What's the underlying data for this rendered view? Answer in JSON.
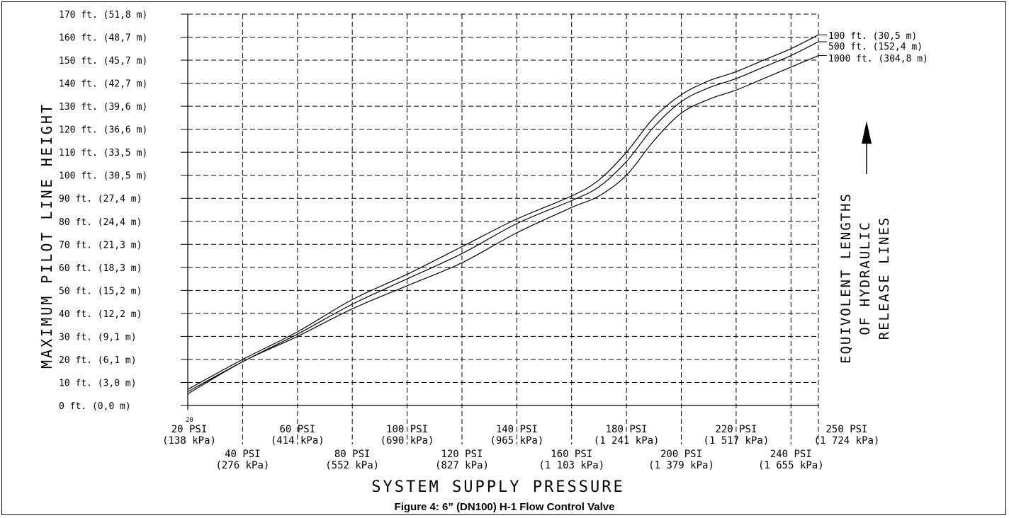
{
  "caption": "Figure 4: 6” (DN100) H-1 Flow Control Valve",
  "chart_data": {
    "type": "line",
    "title": "",
    "xlabel": "SYSTEM SUPPLY PRESSURE",
    "ylabel": "MAXIMUM PILOT LINE HEIGHT",
    "xlim": [
      20,
      250
    ],
    "ylim": [
      0,
      170
    ],
    "grid": true,
    "x_corner_label": "20",
    "x_ticks": [
      20,
      40,
      60,
      80,
      100,
      120,
      140,
      160,
      180,
      200,
      220,
      240,
      250
    ],
    "x_tick_labels": [
      {
        "x": 20,
        "psi": "20 PSI",
        "kpa": "(138 kPa)"
      },
      {
        "x": 40,
        "psi": "40 PSI",
        "kpa": "(276 kPa)"
      },
      {
        "x": 60,
        "psi": "60 PSI",
        "kpa": "(414 kPa)"
      },
      {
        "x": 80,
        "psi": "80 PSI",
        "kpa": "(552 kPa)"
      },
      {
        "x": 100,
        "psi": "100 PSI",
        "kpa": "(690 kPa)"
      },
      {
        "x": 120,
        "psi": "120 PSI",
        "kpa": "(827 kPa)"
      },
      {
        "x": 140,
        "psi": "140 PSI",
        "kpa": "(965 kPa)"
      },
      {
        "x": 160,
        "psi": "160 PSI",
        "kpa": "(1 103 kPa)"
      },
      {
        "x": 180,
        "psi": "180 PSI",
        "kpa": "(1 241 kPa)"
      },
      {
        "x": 200,
        "psi": "200 PSI",
        "kpa": "(1 379 kPa)"
      },
      {
        "x": 220,
        "psi": "220 PSI",
        "kpa": "(1 517 kPa)"
      },
      {
        "x": 240,
        "psi": "240 PSI",
        "kpa": "(1 655 kPa)"
      },
      {
        "x": 250,
        "psi": "250 PSI",
        "kpa": "(1 724 kPa)"
      }
    ],
    "y_tick_labels": [
      {
        "y": 0,
        "label": "0 ft. (0,0 m)"
      },
      {
        "y": 10,
        "label": "10 ft. (3,0 m)"
      },
      {
        "y": 20,
        "label": "20 ft. (6,1 m)"
      },
      {
        "y": 30,
        "label": "30 ft. (9,1 m)"
      },
      {
        "y": 40,
        "label": "40 ft. (12,2 m)"
      },
      {
        "y": 50,
        "label": "50 ft. (15,2 m)"
      },
      {
        "y": 60,
        "label": "60 ft. (18,3 m)"
      },
      {
        "y": 70,
        "label": "70 ft. (21,3 m)"
      },
      {
        "y": 80,
        "label": "80 ft. (24,4 m)"
      },
      {
        "y": 90,
        "label": "90 ft. (27,4 m)"
      },
      {
        "y": 100,
        "label": "100 ft. (30,5 m)"
      },
      {
        "y": 110,
        "label": "110 ft. (33,5 m)"
      },
      {
        "y": 120,
        "label": "120 ft. (36,6 m)"
      },
      {
        "y": 130,
        "label": "130 ft. (39,6 m)"
      },
      {
        "y": 140,
        "label": "140 ft. (42,7 m)"
      },
      {
        "y": 150,
        "label": "150 ft. (45,7 m)"
      },
      {
        "y": 160,
        "label": "160 ft. (48,7 m)"
      },
      {
        "y": 170,
        "label": "170 ft. (51,8 m)"
      }
    ],
    "legend_title_lines": [
      "EQUIVOLENT LENGTHS",
      "OF HYDRAULIC",
      "RELEASE LINES"
    ],
    "series": [
      {
        "name": "100 ft. (30,5 m)",
        "x": [
          20,
          40,
          60,
          80,
          100,
          120,
          140,
          160,
          170,
          180,
          190,
          200,
          210,
          220,
          230,
          240,
          250
        ],
        "y": [
          7,
          20,
          32,
          46,
          57,
          69,
          81,
          91,
          98,
          110,
          125,
          135,
          141,
          145,
          150,
          155,
          161
        ]
      },
      {
        "name": "500 ft. (152,4 m)",
        "x": [
          20,
          40,
          60,
          80,
          100,
          120,
          140,
          160,
          170,
          180,
          190,
          200,
          210,
          220,
          230,
          240,
          250
        ],
        "y": [
          6,
          19,
          31,
          44,
          55,
          66,
          79,
          89,
          95,
          106,
          121,
          132,
          138,
          142,
          147,
          152,
          158
        ]
      },
      {
        "name": "1000 ft. (304,8 m)",
        "x": [
          20,
          40,
          60,
          80,
          100,
          120,
          140,
          160,
          170,
          180,
          190,
          200,
          210,
          220,
          230,
          240,
          250
        ],
        "y": [
          5,
          19,
          30,
          42,
          52,
          62,
          75,
          86,
          91,
          100,
          115,
          127,
          133,
          137,
          142,
          147,
          152
        ]
      }
    ]
  }
}
